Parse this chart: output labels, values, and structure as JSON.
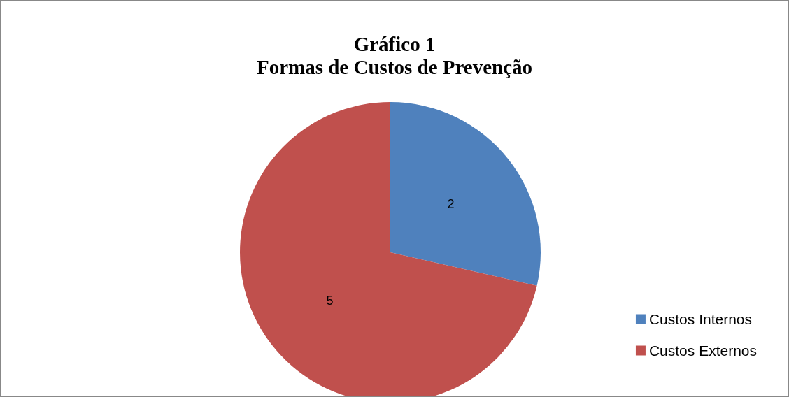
{
  "chart_data": {
    "type": "pie",
    "title": "Gráfico 1",
    "subtitle": "Formas de Custos de Prevenção",
    "categories": [
      "Custos Internos",
      "Custos Externos"
    ],
    "values": [
      2,
      5
    ],
    "colors": [
      "#4f81bd",
      "#c0504d"
    ],
    "data_labels": true,
    "legend": "right"
  }
}
